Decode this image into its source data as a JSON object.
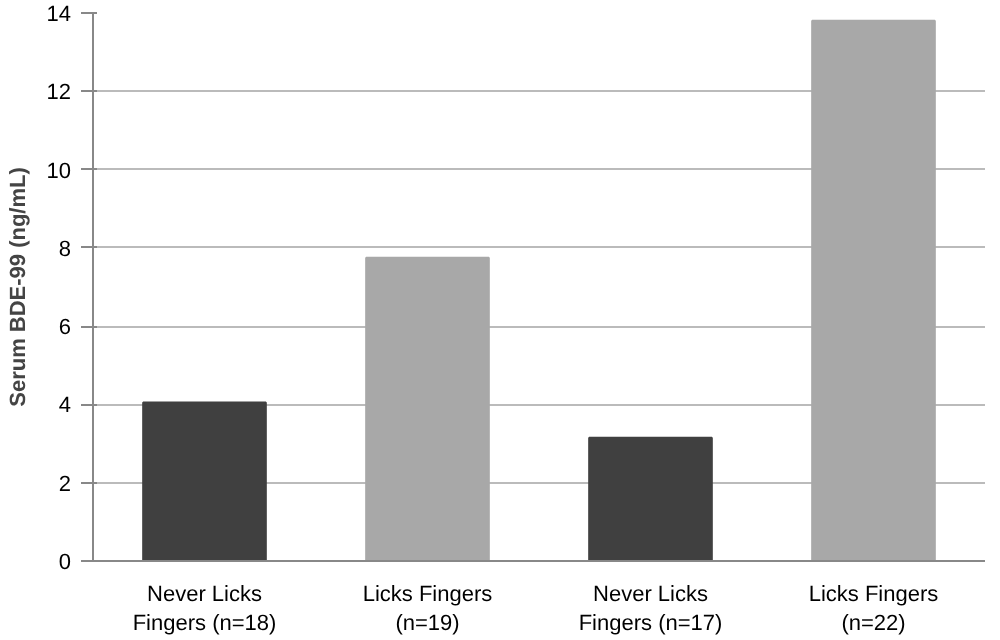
{
  "chart_data": {
    "type": "bar",
    "ylabel": "Serum BDE-99 (ng/mL)",
    "categories": [
      "Never Licks\nFingers (n=18)",
      "Licks Fingers\n(n=19)",
      "Never Licks\nFingers (n=17)",
      "Licks Fingers\n(n=22)"
    ],
    "values": [
      4.05,
      7.75,
      3.15,
      13.8
    ],
    "colors": [
      "#404040",
      "#a8a8a8",
      "#404040",
      "#a8a8a8"
    ],
    "ylim": [
      0,
      14
    ],
    "yticks": [
      0,
      2,
      4,
      6,
      8,
      10,
      12,
      14
    ],
    "grid": "y"
  }
}
